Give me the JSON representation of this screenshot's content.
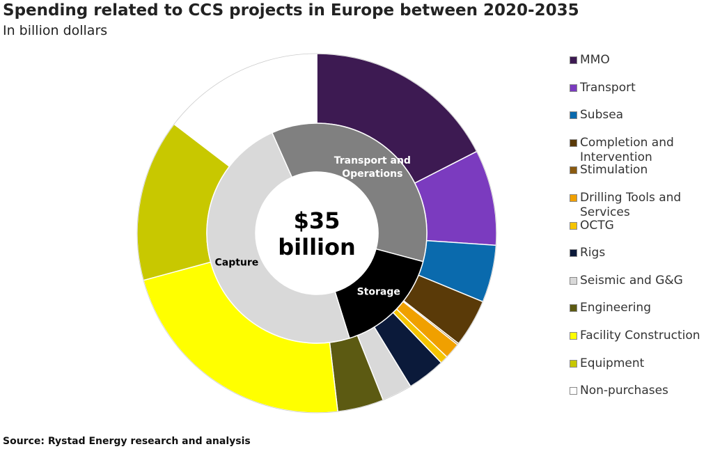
{
  "chart_data": {
    "type": "nested_donut",
    "title": "Spending related to CCS projects in Europe between 2020-2035",
    "subtitle": "In billion dollars",
    "center_label": [
      "$35",
      "billion"
    ],
    "source": "Source: Rystad Energy research and analysis",
    "inner": {
      "categories": [
        "Transport and Operations",
        "Storage",
        "Capture"
      ],
      "values": [
        12.5,
        5.6,
        16.8
      ],
      "colors": [
        "#808080",
        "#000000",
        "#d9d9d9"
      ],
      "label_colors": [
        "#ffffff",
        "#ffffff",
        "#000000"
      ]
    },
    "outer": {
      "categories": [
        "MMO",
        "Transport",
        "Subsea",
        "Completion and Intervention",
        "Stimulation",
        "Drilling Tools and Services",
        "OCTG",
        "Rigs",
        "Seismic and G&G",
        "Engineering",
        "Facility Construction",
        "Equipment",
        "Non-purchases"
      ],
      "values": [
        6.1,
        3.0,
        1.8,
        1.5,
        0.05,
        0.5,
        0.25,
        1.2,
        0.95,
        1.45,
        7.9,
        5.1,
        5.1
      ],
      "colors": [
        "#3d1a52",
        "#7b3bbf",
        "#0a6aad",
        "#5a3a08",
        "#8a5a10",
        "#f0a000",
        "#f5c400",
        "#0b1a3a",
        "#d9d9d9",
        "#5c5a12",
        "#ffff00",
        "#c8c800",
        "#ffffff"
      ]
    }
  }
}
